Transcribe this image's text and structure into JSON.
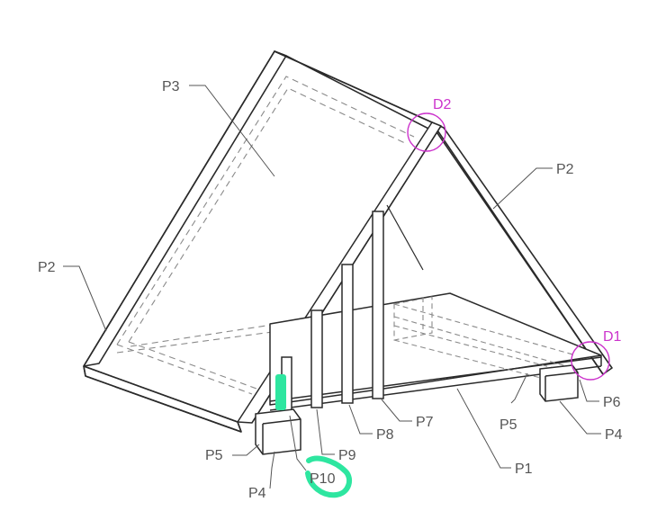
{
  "labels": {
    "p3": "P3",
    "p2_left": "P2",
    "p2_right": "P2",
    "p1": "P1",
    "p4_left": "P4",
    "p4_right": "P4",
    "p5_left": "P5",
    "p5_right": "P5",
    "p6": "P6",
    "p7": "P7",
    "p8": "P8",
    "p9": "P9",
    "p10": "P10"
  },
  "details": {
    "d1": "D1",
    "d2": "D2"
  },
  "colors": {
    "line": "#2a2a2a",
    "dash": "#8a8a8a",
    "leader": "#555555",
    "label": "#555555",
    "detail": "#cc33cc",
    "markup": "#2ee6a0"
  }
}
